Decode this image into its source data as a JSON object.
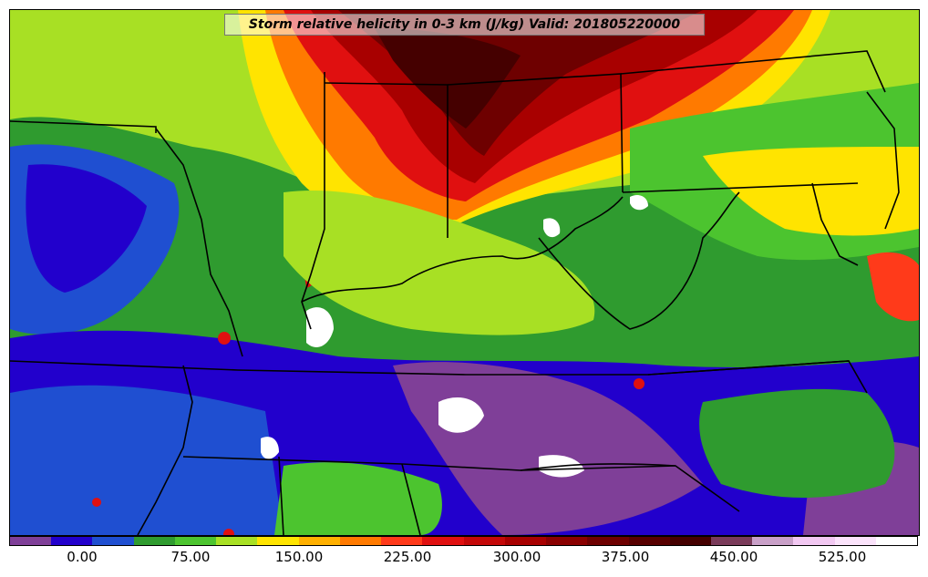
{
  "title": "Storm relative helicity in 0-3 km (J/kg) Valid: 201805220000",
  "colorbar": {
    "colors": [
      "#7f3f98",
      "#2200cc",
      "#1f4fd1",
      "#2f9b2f",
      "#4cc42f",
      "#a8e024",
      "#ffe400",
      "#ffb000",
      "#ff7a00",
      "#ff3a1a",
      "#e01010",
      "#c40808",
      "#a80000",
      "#8a0000",
      "#6e0000",
      "#580000",
      "#450000",
      "#7a3b5a",
      "#c9a0c8",
      "#f2c8f2",
      "#fbe3fb",
      "#ffffff"
    ],
    "tick_labels": [
      "0.00",
      "75.00",
      "150.00",
      "225.00",
      "300.00",
      "375.00",
      "450.00",
      "525.00"
    ]
  },
  "regions": {
    "north_band_color": "#b00000",
    "east_band_color": "#4cc42f",
    "south_fill_color": "#2200cc",
    "southeast_fill_color": "#7f3f98",
    "southeast_coast_color": "#2f9b2f",
    "white_pockets_color": "#ffffff",
    "border_color": "#000000"
  }
}
